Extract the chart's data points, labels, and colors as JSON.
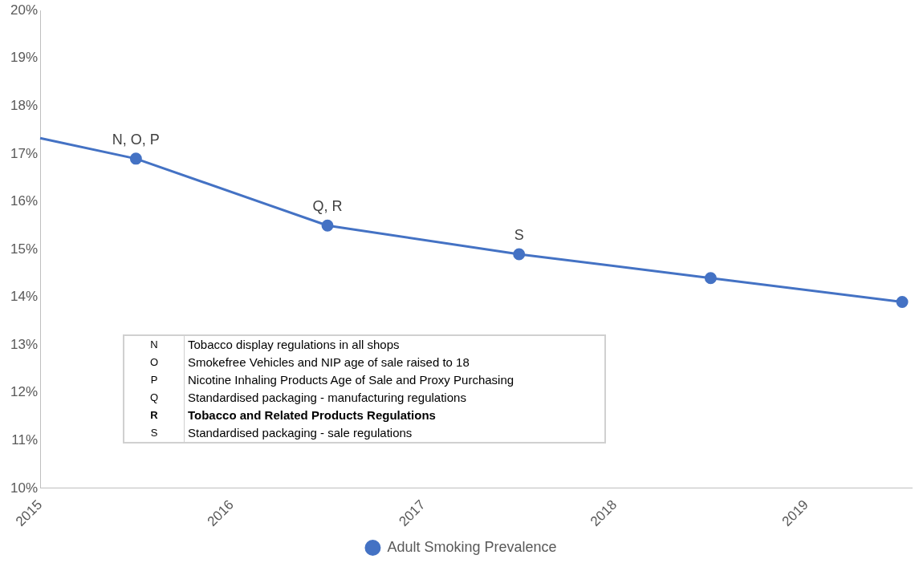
{
  "chart_data": {
    "type": "line",
    "xlim": [
      2015,
      2019.55
    ],
    "xticks": [
      2015,
      2016,
      2017,
      2018,
      2019
    ],
    "ylim": [
      10,
      20
    ],
    "yticks": [
      {
        "value": 10,
        "label": "10%"
      },
      {
        "value": 11,
        "label": "11%"
      },
      {
        "value": 12,
        "label": "12%"
      },
      {
        "value": 13,
        "label": "13%"
      },
      {
        "value": 14,
        "label": "14%"
      },
      {
        "value": 15,
        "label": "15%"
      },
      {
        "value": 16,
        "label": "16%"
      },
      {
        "value": 17,
        "label": "17%"
      },
      {
        "value": 18,
        "label": "18%"
      },
      {
        "value": 19,
        "label": "19%"
      },
      {
        "value": 20,
        "label": "20%"
      }
    ],
    "grid": false,
    "legend": "bottom",
    "series": [
      {
        "name": "Adult Smoking Prevalence",
        "color": "#4472c4",
        "marker": "circle",
        "x": [
          2015,
          2015.5,
          2016.5,
          2017.5,
          2018.5,
          2019.5
        ],
        "values": [
          17.33,
          16.9,
          15.5,
          14.9,
          14.4,
          13.9
        ]
      }
    ],
    "annotations": [
      {
        "text": "N, O, P",
        "x": 2015.5,
        "y": 16.9
      },
      {
        "text": "Q, R",
        "x": 2016.5,
        "y": 15.5
      },
      {
        "text": "S",
        "x": 2017.5,
        "y": 14.9
      },
      "N",
      "Tobacco display regulations in all shops",
      "O",
      "Smokefree Vehicles and NIP age of sale raised to 18",
      "P",
      "Nicotine Inhaling Products Age of Sale and Proxy Purchasing",
      "Q",
      "Standardised packaging - manufacturing regulations",
      "R",
      "Tobacco and Related Products Regulations",
      "S",
      "Standardised packaging - sale regulations"
    ]
  }
}
